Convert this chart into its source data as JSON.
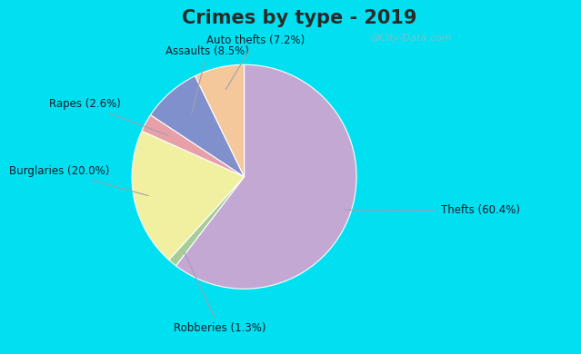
{
  "title": "Crimes by type - 2019",
  "slices": [
    {
      "label": "Thefts (60.4%)",
      "value": 60.4,
      "color": "#c4a8d4"
    },
    {
      "label": "Robberies (1.3%)",
      "value": 1.3,
      "color": "#a8cc98"
    },
    {
      "label": "Burglaries (20.0%)",
      "value": 20.0,
      "color": "#f0f0a0"
    },
    {
      "label": "Rapes (2.6%)",
      "value": 2.6,
      "color": "#e8a0a8"
    },
    {
      "label": "Assaults (8.5%)",
      "value": 8.5,
      "color": "#8090cc"
    },
    {
      "label": "Auto thefts (7.2%)",
      "value": 7.2,
      "color": "#f4c89a"
    }
  ],
  "background_outer": "#00e0f0",
  "background_inner_color": "#d4ede0",
  "title_fontsize": 15,
  "title_color": "#2a2a2a",
  "watermark": "@City-Data.com",
  "watermark_color": "#90bcc8",
  "label_fontsize": 8.5,
  "label_color": "#1a1a2a"
}
